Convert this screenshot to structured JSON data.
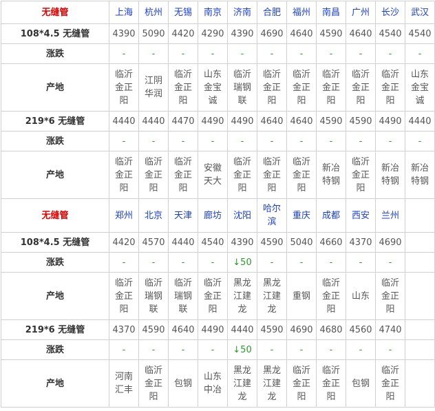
{
  "tables": [
    {
      "header": {
        "label": "无缝管",
        "cities": [
          "上海",
          "杭州",
          "无锡",
          "南京",
          "济南",
          "合肥",
          "福州",
          "南昌",
          "广州",
          "长沙",
          "武汉"
        ]
      },
      "rows": [
        {
          "kind": "price",
          "label": "108*4.5 无缝管",
          "values": [
            4390,
            5090,
            4420,
            4290,
            4390,
            4690,
            4640,
            4590,
            4640,
            4540,
            4540
          ]
        },
        {
          "kind": "change",
          "label": "涨跌",
          "values": [
            "-",
            "-",
            "-",
            "-",
            "-",
            "-",
            "-",
            "-",
            "-",
            "-",
            "-"
          ]
        },
        {
          "kind": "origin",
          "label": "产地",
          "values": [
            "临沂金正阳",
            "江阴华润",
            "临沂金正阳",
            "山东金宝诚",
            "临沂瑞钢联",
            "临沂金正阳",
            "临沂金正阳",
            "临沂金正阳",
            "临沂金正阳",
            "临沂金正阳",
            "山东金宝诚"
          ]
        },
        {
          "kind": "price",
          "label": "219*6 无缝管",
          "values": [
            4440,
            4440,
            4470,
            4490,
            4490,
            4640,
            4640,
            4590,
            4590,
            4490,
            4440
          ]
        },
        {
          "kind": "change",
          "label": "涨跌",
          "values": [
            "-",
            "-",
            "-",
            "-",
            "-",
            "-",
            "-",
            "-",
            "-",
            "-",
            "-"
          ]
        },
        {
          "kind": "origin",
          "label": "产地",
          "values": [
            "临沂金正阳",
            "临沂金正阳",
            "临沂金正阳",
            "安徽天大",
            "临沂金正阳",
            "临沂金正阳",
            "临沂金正阳",
            "新冶特钢",
            "临沂金正阳",
            "新冶特钢",
            "新冶特钢"
          ]
        }
      ]
    },
    {
      "header": {
        "label": "无缝管",
        "cities": [
          "郑州",
          "北京",
          "天津",
          "廊坊",
          "沈阳",
          "哈尔滨",
          "重庆",
          "成都",
          "西安",
          "兰州"
        ]
      },
      "rows": [
        {
          "kind": "price",
          "label": "108*4.5 无缝管",
          "values": [
            4420,
            4570,
            4440,
            4540,
            4390,
            4590,
            5040,
            4660,
            4370,
            4690
          ]
        },
        {
          "kind": "change",
          "label": "涨跌",
          "values": [
            "-",
            "-",
            "-",
            "-",
            "↓50",
            "-",
            "-",
            "-",
            "-",
            "-"
          ]
        },
        {
          "kind": "origin",
          "label": "产地",
          "values": [
            "临沂金正阳",
            "临沂瑞钢联",
            "临沂瑞钢联",
            "临沂金正阳",
            "黑龙江建龙",
            "黑龙江建龙",
            "重钢",
            "临沂金正阳",
            "山东",
            "临沂金正阳"
          ]
        },
        {
          "kind": "price",
          "label": "219*6 无缝管",
          "values": [
            4370,
            4590,
            4640,
            4490,
            4440,
            4590,
            4690,
            4680,
            4560,
            4740
          ]
        },
        {
          "kind": "change",
          "label": "涨跌",
          "values": [
            "-",
            "-",
            "-",
            "-",
            "↓50",
            "-",
            "-",
            "-",
            "-",
            "-"
          ]
        },
        {
          "kind": "origin",
          "label": "产地",
          "values": [
            "河南汇丰",
            "临沂金正阳",
            "包钢",
            "山东中冶",
            "黑龙江建龙",
            "黑龙江建龙",
            "临沂金正阳",
            "临沂金正阳",
            "包钢",
            "临沂金正阳"
          ]
        }
      ]
    }
  ]
}
